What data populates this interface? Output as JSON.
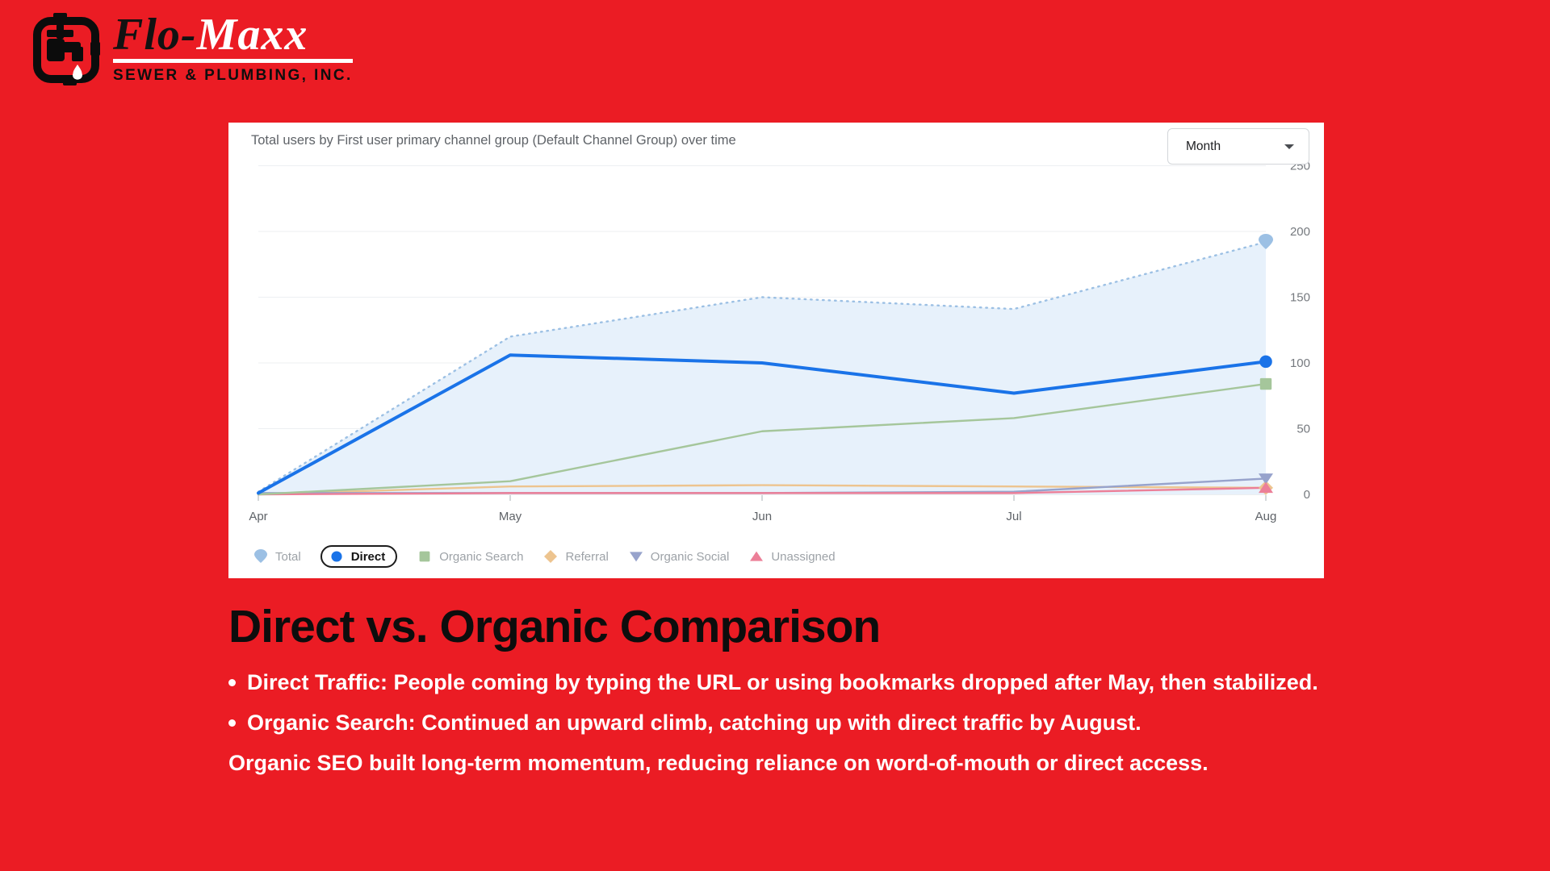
{
  "colors": {
    "background": "#EB1C24",
    "panel": "#FFFFFF",
    "grid": "#EDEFF2",
    "baseline": "#D8DCE0",
    "axis_text": "#75797E",
    "xaxis_text": "#5F6368",
    "title_text": "#5F6368",
    "legend_text": "#9DA2A7"
  },
  "logo": {
    "brand_first": "Flo-",
    "brand_second": "Maxx",
    "subtitle": "SEWER & PLUMBING, INC."
  },
  "panel": {
    "title": "Total users by First user primary channel group (Default Channel Group) over time",
    "dropdown_label": "Month"
  },
  "chart_data": {
    "type": "line",
    "title": "Total users by First user primary channel group (Default Channel Group) over time",
    "x": [
      "Apr",
      "May",
      "Jun",
      "Jul",
      "Aug"
    ],
    "yticks": [
      0,
      50,
      100,
      150,
      200,
      250
    ],
    "ylim": [
      0,
      250
    ],
    "grid": true,
    "legend_position": "bottom",
    "series": [
      {
        "name": "Total",
        "marker": "drop",
        "color": "#9CC0E4",
        "area": true,
        "area_fill": "#E7F1FB",
        "dotted": true,
        "values": [
          2,
          120,
          150,
          141,
          192
        ]
      },
      {
        "name": "Direct",
        "marker": "circle",
        "color": "#1A73E8",
        "selected": true,
        "values": [
          1,
          106,
          100,
          77,
          101
        ]
      },
      {
        "name": "Organic Search",
        "marker": "square",
        "color": "#A5C69B",
        "values": [
          0,
          10,
          48,
          58,
          84
        ]
      },
      {
        "name": "Referral",
        "marker": "diamond",
        "color": "#EDC48F",
        "values": [
          0,
          6,
          7,
          6,
          5
        ]
      },
      {
        "name": "Organic Social",
        "marker": "triangle-down",
        "color": "#97A3CC",
        "values": [
          1,
          1,
          1,
          2,
          12
        ]
      },
      {
        "name": "Unassigned",
        "marker": "triangle-up",
        "color": "#EC7F98",
        "values": [
          0,
          1,
          1,
          1,
          5
        ]
      }
    ]
  },
  "content": {
    "heading": "Direct vs. Organic Comparison",
    "bullets": [
      "Direct Traffic: People coming by typing the URL or using bookmarks dropped after May, then stabilized.",
      "Organic Search: Continued an upward climb, catching up with direct traffic by August."
    ],
    "summary": "Organic SEO built long-term momentum, reducing reliance on word-of-mouth or direct access."
  }
}
